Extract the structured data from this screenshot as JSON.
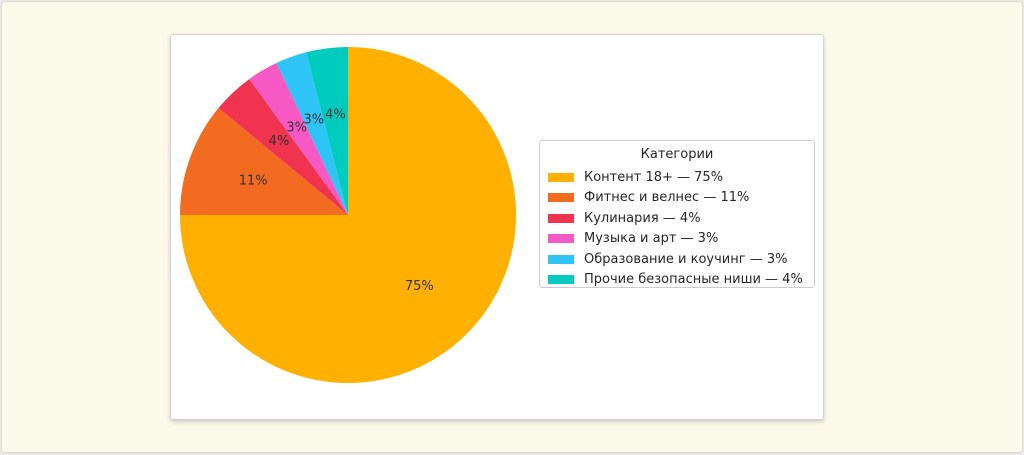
{
  "chart_data": {
    "type": "pie",
    "legend_title": "Категории",
    "legend_position": "right",
    "start_angle": 90,
    "direction": "clockwise",
    "slices": [
      {
        "label": "Контент 18+ — 75%",
        "value": 75,
        "pct_label": "75%",
        "color": "#ffb000"
      },
      {
        "label": "Фитнес и велнес — 11%",
        "value": 11,
        "pct_label": "11%",
        "color": "#f26b21"
      },
      {
        "label": "Кулинария — 4%",
        "value": 4,
        "pct_label": "4%",
        "color": "#f0334f"
      },
      {
        "label": "Музыка и арт — 3%",
        "value": 3,
        "pct_label": "3%",
        "color": "#f759c4"
      },
      {
        "label": "Образование и коучинг — 3%",
        "value": 3,
        "pct_label": "3%",
        "color": "#2ec4f5"
      },
      {
        "label": "Прочие безопасные ниши — 4%",
        "value": 4,
        "pct_label": "4%",
        "color": "#00cbbf"
      }
    ]
  }
}
